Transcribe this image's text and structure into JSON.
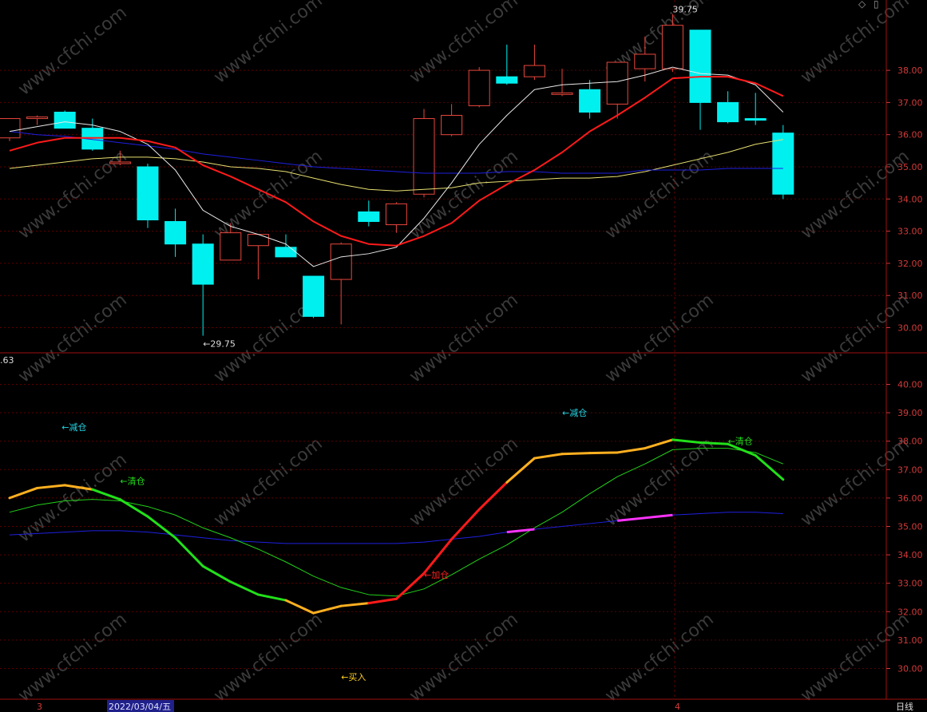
{
  "window": {
    "period_label": "日线",
    "date_cursor": "2022/03/04/五",
    "month_markers": [
      "3",
      "4"
    ],
    "top_icons": [
      "diamond-icon",
      "panel-icon"
    ]
  },
  "colors": {
    "up_candle": "#e8463c",
    "down_candle": "#00f0f0",
    "grid": "#5a0000",
    "axis_text": "#d23a3a",
    "ma_white": "#e8e8e8",
    "ma_red": "#ff1a1a",
    "ma_blue": "#1f1fe0",
    "ma_yellow": "#e8e070",
    "ind_green": "#22e01a",
    "ind_orange": "#ffb020",
    "ind_red": "#ff1a1a",
    "ind_magenta": "#ff33ff",
    "ind_thin_green": "#22d01a",
    "ind_blue": "#1f1fe0"
  },
  "chart_data": [
    {
      "type": "candlestick",
      "ylim": [
        29.5,
        39.9
      ],
      "yticks": [
        "30.00",
        "31.00",
        "32.00",
        "33.00",
        "34.00",
        "35.00",
        "36.00",
        "37.00",
        "38.00"
      ],
      "candles": [
        {
          "o": 35.9,
          "h": 36.5,
          "l": 35.8,
          "c": 36.5
        },
        {
          "o": 36.5,
          "h": 36.6,
          "l": 36.3,
          "c": 36.55
        },
        {
          "o": 36.7,
          "h": 36.75,
          "l": 36.2,
          "c": 36.2
        },
        {
          "o": 36.2,
          "h": 36.5,
          "l": 35.5,
          "c": 35.55
        },
        {
          "o": 35.1,
          "h": 35.5,
          "l": 35.05,
          "c": 35.15
        },
        {
          "o": 35.0,
          "h": 35.1,
          "l": 33.1,
          "c": 33.35
        },
        {
          "o": 33.3,
          "h": 33.7,
          "l": 32.2,
          "c": 32.6
        },
        {
          "o": 32.6,
          "h": 32.9,
          "l": 29.75,
          "c": 31.35
        },
        {
          "o": 32.1,
          "h": 33.25,
          "l": 32.1,
          "c": 32.95
        },
        {
          "o": 32.55,
          "h": 32.9,
          "l": 31.5,
          "c": 32.9
        },
        {
          "o": 32.5,
          "h": 32.9,
          "l": 32.2,
          "c": 32.2
        },
        {
          "o": 31.6,
          "h": 31.6,
          "l": 30.3,
          "c": 30.35
        },
        {
          "o": 31.5,
          "h": 32.65,
          "l": 30.1,
          "c": 32.6
        },
        {
          "o": 33.6,
          "h": 33.95,
          "l": 33.15,
          "c": 33.3
        },
        {
          "o": 33.2,
          "h": 33.9,
          "l": 32.95,
          "c": 33.85
        },
        {
          "o": 34.15,
          "h": 36.8,
          "l": 34.05,
          "c": 36.5
        },
        {
          "o": 36.0,
          "h": 36.95,
          "l": 35.95,
          "c": 36.6
        },
        {
          "o": 36.9,
          "h": 38.1,
          "l": 36.85,
          "c": 38.0
        },
        {
          "o": 37.8,
          "h": 38.8,
          "l": 37.55,
          "c": 37.6
        },
        {
          "o": 37.8,
          "h": 38.8,
          "l": 37.7,
          "c": 38.15
        },
        {
          "o": 37.3,
          "h": 38.05,
          "l": 37.2,
          "c": 37.3
        },
        {
          "o": 37.4,
          "h": 37.7,
          "l": 36.5,
          "c": 36.7
        },
        {
          "o": 36.95,
          "h": 38.25,
          "l": 36.5,
          "c": 38.25
        },
        {
          "o": 38.05,
          "h": 39.05,
          "l": 37.65,
          "c": 38.5
        },
        {
          "o": 38.05,
          "h": 39.75,
          "l": 37.95,
          "c": 39.4
        },
        {
          "o": 39.25,
          "h": 39.25,
          "l": 36.15,
          "c": 37.0
        },
        {
          "o": 37.0,
          "h": 37.35,
          "l": 36.35,
          "c": 36.4
        },
        {
          "o": 36.5,
          "h": 37.3,
          "l": 36.3,
          "c": 36.45
        },
        {
          "o": 36.05,
          "h": 36.3,
          "l": 34.0,
          "c": 34.15
        }
      ],
      "ma_white": [
        36.1,
        36.25,
        36.4,
        36.3,
        36.1,
        35.7,
        34.9,
        33.65,
        33.15,
        32.9,
        32.6,
        31.9,
        32.2,
        32.3,
        32.5,
        33.4,
        34.5,
        35.7,
        36.6,
        37.4,
        37.55,
        37.6,
        37.65,
        37.85,
        38.1,
        37.9,
        37.85,
        37.55,
        36.7
      ],
      "ma_red": [
        35.5,
        35.75,
        35.9,
        35.9,
        35.9,
        35.8,
        35.6,
        35.05,
        34.7,
        34.3,
        33.9,
        33.3,
        32.85,
        32.6,
        32.55,
        32.85,
        33.25,
        33.95,
        34.45,
        34.9,
        35.45,
        36.1,
        36.6,
        37.15,
        37.75,
        37.8,
        37.8,
        37.6,
        37.2
      ],
      "ma_blue": [
        36.1,
        36.0,
        35.95,
        35.85,
        35.75,
        35.65,
        35.55,
        35.4,
        35.3,
        35.2,
        35.1,
        35.0,
        34.95,
        34.9,
        34.85,
        34.8,
        34.8,
        34.8,
        34.85,
        34.85,
        34.8,
        34.8,
        34.8,
        34.9,
        34.9,
        34.9,
        34.95,
        34.95,
        34.95
      ],
      "ma_yellow": [
        34.95,
        35.05,
        35.15,
        35.25,
        35.3,
        35.3,
        35.25,
        35.15,
        35.0,
        34.95,
        34.85,
        34.65,
        34.45,
        34.3,
        34.25,
        34.3,
        34.35,
        34.5,
        34.55,
        34.6,
        34.65,
        34.65,
        34.7,
        34.85,
        35.05,
        35.25,
        35.45,
        35.7,
        35.85
      ],
      "annotations": [
        {
          "text": "←29.75",
          "index": 7,
          "value": 29.75
        },
        {
          "text": "39.75",
          "index": 24,
          "value": 39.75
        }
      ]
    },
    {
      "type": "line",
      "left_value": ".63",
      "ylim": [
        29.25,
        41.0
      ],
      "yticks": [
        "30.00",
        "31.00",
        "32.00",
        "33.00",
        "34.00",
        "35.00",
        "36.00",
        "37.00",
        "38.00",
        "39.00",
        "40.00"
      ],
      "main_line": [
        36.0,
        36.35,
        36.45,
        36.3,
        35.95,
        35.35,
        34.6,
        33.6,
        33.05,
        32.6,
        32.4,
        31.95,
        32.2,
        32.3,
        32.45,
        33.35,
        34.55,
        35.6,
        36.55,
        37.4,
        37.55,
        37.58,
        37.6,
        37.75,
        38.05,
        37.95,
        37.9,
        37.5,
        36.65
      ],
      "main_line_colors": [
        "orange",
        "orange",
        "orange",
        "orange",
        "green",
        "green",
        "green",
        "green",
        "green",
        "green",
        "green",
        "orange",
        "orange",
        "orange",
        "red",
        "red",
        "red",
        "red",
        "red",
        "orange",
        "orange",
        "orange",
        "orange",
        "orange",
        "orange",
        "green",
        "green",
        "green",
        "green"
      ],
      "thin_green": [
        35.5,
        35.75,
        35.9,
        35.95,
        35.9,
        35.7,
        35.4,
        34.95,
        34.6,
        34.2,
        33.75,
        33.25,
        32.85,
        32.6,
        32.55,
        32.8,
        33.3,
        33.85,
        34.35,
        34.95,
        35.5,
        36.15,
        36.75,
        37.2,
        37.7,
        37.75,
        37.75,
        37.6,
        37.2
      ],
      "blue_line": [
        34.7,
        34.75,
        34.8,
        34.85,
        34.85,
        34.8,
        34.7,
        34.6,
        34.5,
        34.45,
        34.4,
        34.4,
        34.4,
        34.4,
        34.4,
        34.45,
        34.55,
        34.65,
        34.8,
        34.9,
        35.0,
        35.1,
        35.2,
        35.3,
        35.4,
        35.45,
        35.5,
        35.5,
        35.45
      ],
      "magenta_segments": [
        [
          18,
          19
        ],
        [
          22,
          24
        ]
      ],
      "signals": [
        {
          "text": "←减仓",
          "index": 2,
          "value": 38.5,
          "color": "cyan"
        },
        {
          "text": "←清仓",
          "index": 4,
          "value": 36.6,
          "color": "green"
        },
        {
          "text": "←买入",
          "index": 12,
          "value": 29.7,
          "color": "yellow"
        },
        {
          "text": "←加仓",
          "index": 15,
          "value": 33.3,
          "color": "red"
        },
        {
          "text": "←减仓",
          "index": 20,
          "value": 39.0,
          "color": "cyan"
        },
        {
          "text": "←清仓",
          "index": 26,
          "value": 38.0,
          "color": "green"
        }
      ]
    }
  ]
}
